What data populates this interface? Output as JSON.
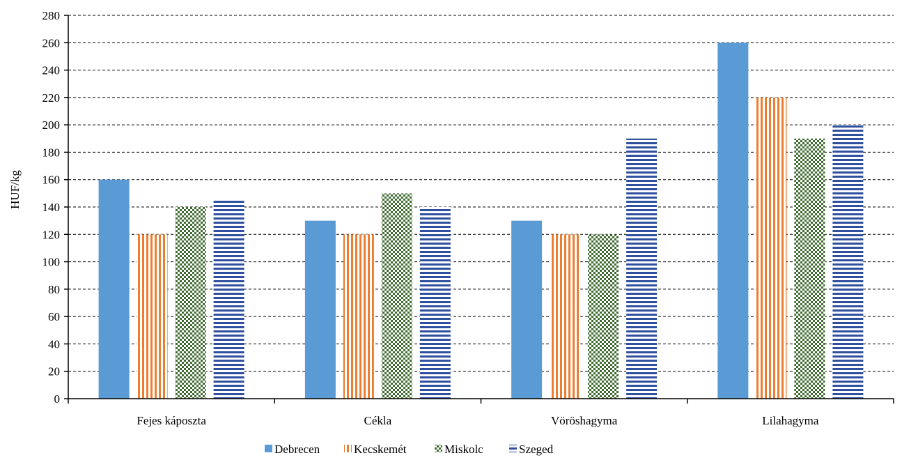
{
  "chart_data": {
    "type": "bar",
    "title": "",
    "xlabel": "",
    "ylabel": "HUF/kg",
    "categories": [
      "Fejes káposzta",
      "Cékla",
      "Vöröshagyma",
      "Lilahagyma"
    ],
    "series": [
      {
        "name": "Debrecen",
        "values": [
          160,
          130,
          130,
          260
        ],
        "color": "#5b9bd5",
        "pattern": "solid"
      },
      {
        "name": "Kecskemét",
        "values": [
          120,
          120,
          120,
          220
        ],
        "color": "#ed7d31",
        "pattern": "vertical-stripes"
      },
      {
        "name": "Miskolc",
        "values": [
          140,
          150,
          120,
          190
        ],
        "color": "#3e6b2f",
        "pattern": "checkerboard"
      },
      {
        "name": "Szeged",
        "values": [
          145,
          140,
          190,
          200
        ],
        "color": "#2f4f9f",
        "pattern": "horizontal-stripes"
      }
    ],
    "ylim": [
      0,
      280
    ],
    "yticks": [
      0,
      20,
      40,
      60,
      80,
      100,
      120,
      140,
      160,
      180,
      200,
      220,
      240,
      260,
      280
    ],
    "grid": "horizontal-dashed",
    "legend_position": "bottom-center"
  }
}
